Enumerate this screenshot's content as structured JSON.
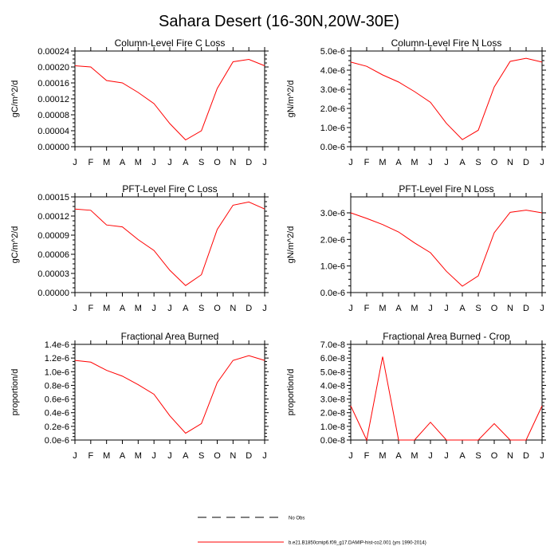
{
  "page_title": "Sahara Desert (16-30N,20W-30E)",
  "legend": {
    "entries": [
      {
        "label": "No Obs",
        "style": "dashed",
        "color": "#000000"
      },
      {
        "label": "b.e21.B1850cmip6.f09_g17.DAMIP-hist-co2.001 (yrs 1990-2014)",
        "style": "solid",
        "color": "#ff0000"
      }
    ]
  },
  "chart_data": [
    {
      "type": "line",
      "title": "Column-Level Fire C Loss",
      "ylabel": "gC/m^2/d",
      "categories": [
        "J",
        "F",
        "M",
        "A",
        "M",
        "J",
        "J",
        "A",
        "S",
        "O",
        "N",
        "D",
        "J"
      ],
      "yticks": [
        "0.00000",
        "0.00004",
        "0.00008",
        "0.00012",
        "0.00016",
        "0.00020",
        "0.00024"
      ],
      "ylim": [
        0,
        0.00024
      ],
      "series": [
        {
          "color": "#ff0000",
          "values": [
            0.000203,
            0.0002,
            0.000166,
            0.00016,
            0.000136,
            0.000108,
            5.8e-05,
            1.7e-05,
            4e-05,
            0.000146,
            0.000213,
            0.000219,
            0.000203
          ]
        }
      ]
    },
    {
      "type": "line",
      "title": "Column-Level Fire N Loss",
      "ylabel": "gN/m^2/d",
      "categories": [
        "J",
        "F",
        "M",
        "A",
        "M",
        "J",
        "J",
        "A",
        "S",
        "O",
        "N",
        "D",
        "J"
      ],
      "yticks": [
        "0.0e-6",
        "1.0e-6",
        "2.0e-6",
        "3.0e-6",
        "4.0e-6",
        "5.0e-6"
      ],
      "ylim": [
        0,
        5e-06
      ],
      "series": [
        {
          "color": "#ff0000",
          "values": [
            4.42e-06,
            4.2e-06,
            3.75e-06,
            3.38e-06,
            2.88e-06,
            2.32e-06,
            1.22e-06,
            3.7e-07,
            8.6e-07,
            3.12e-06,
            4.46e-06,
            4.62e-06,
            4.42e-06
          ]
        }
      ]
    },
    {
      "type": "line",
      "title": "PFT-Level Fire C Loss",
      "ylabel": "gC/m^2/d",
      "categories": [
        "J",
        "F",
        "M",
        "A",
        "M",
        "J",
        "J",
        "A",
        "S",
        "O",
        "N",
        "D",
        "J"
      ],
      "yticks": [
        "0.00000",
        "0.00003",
        "0.00006",
        "0.00009",
        "0.00012",
        "0.00015"
      ],
      "ylim": [
        0,
        0.00015
      ],
      "series": [
        {
          "color": "#ff0000",
          "values": [
            0.000131,
            0.000129,
            0.000106,
            0.000103,
            8.3e-05,
            6.6e-05,
            3.5e-05,
            1.1e-05,
            2.8e-05,
            9.9e-05,
            0.000137,
            0.000142,
            0.000131
          ]
        }
      ]
    },
    {
      "type": "line",
      "title": "PFT-Level Fire N Loss",
      "ylabel": "gN/m^2/d",
      "categories": [
        "J",
        "F",
        "M",
        "A",
        "M",
        "J",
        "J",
        "A",
        "S",
        "O",
        "N",
        "D",
        "J"
      ],
      "yticks": [
        "0.0e-6",
        "1.0e-6",
        "2.0e-6",
        "3.0e-6"
      ],
      "ylim": [
        0,
        3.6e-06
      ],
      "series": [
        {
          "color": "#ff0000",
          "values": [
            3e-06,
            2.79e-06,
            2.56e-06,
            2.28e-06,
            1.87e-06,
            1.5e-06,
            8e-07,
            2.4e-07,
            6.3e-07,
            2.25e-06,
            3.02e-06,
            3.1e-06,
            3e-06
          ]
        }
      ]
    },
    {
      "type": "line",
      "title": "Fractional Area Burned",
      "ylabel": "proportion/d",
      "categories": [
        "J",
        "F",
        "M",
        "A",
        "M",
        "J",
        "J",
        "A",
        "S",
        "O",
        "N",
        "D",
        "J"
      ],
      "yticks": [
        "0.0e-6",
        "0.2e-6",
        "0.4e-6",
        "0.6e-6",
        "0.8e-6",
        "1.0e-6",
        "1.2e-6",
        "1.4e-6"
      ],
      "ylim": [
        0,
        1.4e-06
      ],
      "series": [
        {
          "color": "#ff0000",
          "values": [
            1.165e-06,
            1.14e-06,
            1.02e-06,
            9.35e-07,
            8.1e-07,
            6.7e-07,
            3.55e-07,
            1e-07,
            2.4e-07,
            8.4e-07,
            1.165e-06,
            1.235e-06,
            1.165e-06
          ]
        }
      ]
    },
    {
      "type": "line",
      "title": "Fractional Area Burned - Crop",
      "ylabel": "proportion/d",
      "categories": [
        "J",
        "F",
        "M",
        "A",
        "M",
        "J",
        "J",
        "A",
        "S",
        "O",
        "N",
        "D",
        "J"
      ],
      "yticks": [
        "0.0e-8",
        "1.0e-8",
        "2.0e-8",
        "3.0e-8",
        "4.0e-8",
        "5.0e-8",
        "6.0e-8",
        "7.0e-8"
      ],
      "ylim": [
        0,
        7e-08
      ],
      "series": [
        {
          "color": "#ff0000",
          "values": [
            2.5e-08,
            0,
            6.1e-08,
            0,
            0,
            1.3e-08,
            0,
            0,
            0,
            1.2e-08,
            0,
            0,
            2.5e-08
          ]
        }
      ]
    }
  ]
}
